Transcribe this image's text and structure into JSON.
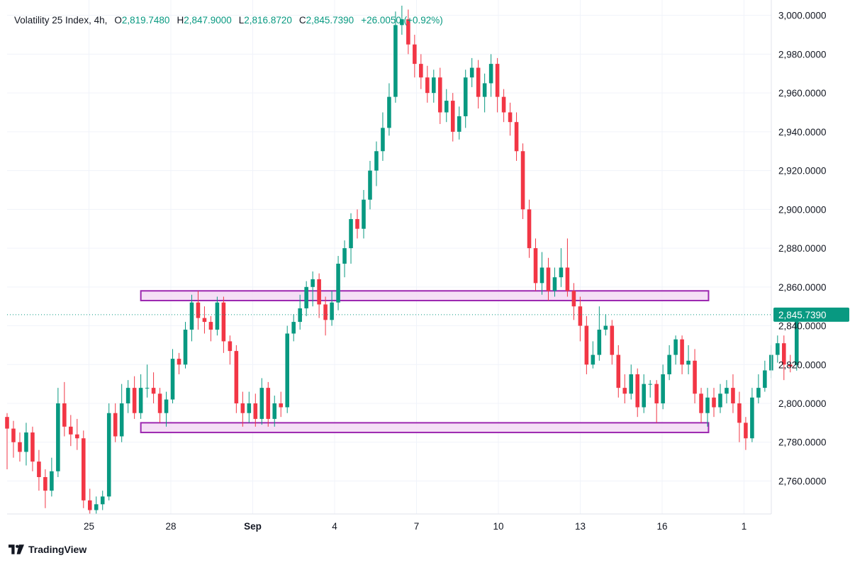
{
  "legend": {
    "symbol": "Volatility 25 Index, 4h,",
    "o_label": "O",
    "o_value": "2,819.7480",
    "h_label": "H",
    "h_value": "2,847.9000",
    "l_label": "L",
    "l_value": "2,816.8720",
    "c_label": "C",
    "c_value": "2,845.7390",
    "change": "+26.0050 (+0.92%)"
  },
  "branding": {
    "name": "TradingView"
  },
  "colors": {
    "up": "#089981",
    "down": "#f23645",
    "zone_border": "#9c27b0",
    "zone_fill": "#f3d9f5"
  },
  "chart_data": {
    "type": "candlestick",
    "y_ticks": [
      {
        "value": 3000,
        "label": "3,000.0000"
      },
      {
        "value": 2980,
        "label": "2,980.0000"
      },
      {
        "value": 2960,
        "label": "2,960.0000"
      },
      {
        "value": 2940,
        "label": "2,940.0000"
      },
      {
        "value": 2920,
        "label": "2,920.0000"
      },
      {
        "value": 2900,
        "label": "2,900.0000"
      },
      {
        "value": 2880,
        "label": "2,880.0000"
      },
      {
        "value": 2860,
        "label": "2,860.0000"
      },
      {
        "value": 2840,
        "label": "2,840.0000"
      },
      {
        "value": 2820,
        "label": "2,820.0000"
      },
      {
        "value": 2800,
        "label": "2,800.0000"
      },
      {
        "value": 2780,
        "label": "2,780.0000"
      },
      {
        "value": 2760,
        "label": "2,760.0000"
      }
    ],
    "x_ticks": [
      {
        "label": "25",
        "day": 25
      },
      {
        "label": "28",
        "day": 28
      },
      {
        "label": "Sep",
        "day": 31,
        "bold": true
      },
      {
        "label": "4",
        "day": 34
      },
      {
        "label": "7",
        "day": 37
      },
      {
        "label": "10",
        "day": 40
      },
      {
        "label": "13",
        "day": 43
      },
      {
        "label": "16",
        "day": 46
      },
      {
        "label": "1",
        "day": 49
      }
    ],
    "ylim": [
      2743,
      3005
    ],
    "xlim": [
      22.0,
      50.0
    ],
    "current_price": {
      "value": 2845.739,
      "label": "2,845.7390"
    },
    "zones": [
      {
        "top": 2858,
        "bottom": 2853,
        "from_day": 26.9,
        "to_day": 47.7
      },
      {
        "top": 2790,
        "bottom": 2785,
        "from_day": 26.9,
        "to_day": 47.7
      }
    ],
    "candles": [
      [
        2793,
        2787,
        2795,
        2766
      ],
      [
        2787,
        2780,
        2791,
        2772
      ],
      [
        2780,
        2775,
        2785,
        2770
      ],
      [
        2775,
        2785,
        2790,
        2768
      ],
      [
        2785,
        2770,
        2788,
        2765
      ],
      [
        2770,
        2762,
        2776,
        2755
      ],
      [
        2762,
        2755,
        2766,
        2746
      ],
      [
        2755,
        2765,
        2772,
        2752
      ],
      [
        2765,
        2800,
        2808,
        2762
      ],
      [
        2800,
        2788,
        2811,
        2783
      ],
      [
        2788,
        2784,
        2794,
        2778
      ],
      [
        2784,
        2782,
        2792,
        2776
      ],
      [
        2782,
        2750,
        2786,
        2746
      ],
      [
        2750,
        2745,
        2756,
        2743
      ],
      [
        2745,
        2748,
        2752,
        2743
      ],
      [
        2748,
        2752,
        2755,
        2745
      ],
      [
        2752,
        2795,
        2800,
        2750
      ],
      [
        2795,
        2783,
        2800,
        2780
      ],
      [
        2783,
        2800,
        2810,
        2780
      ],
      [
        2800,
        2808,
        2812,
        2795
      ],
      [
        2808,
        2795,
        2814,
        2792
      ],
      [
        2795,
        2808,
        2815,
        2792
      ],
      [
        2808,
        2808,
        2820,
        2803
      ],
      [
        2808,
        2805,
        2816,
        2800
      ],
      [
        2805,
        2795,
        2808,
        2790
      ],
      [
        2795,
        2802,
        2806,
        2788
      ],
      [
        2802,
        2823,
        2828,
        2800
      ],
      [
        2823,
        2820,
        2826,
        2815
      ],
      [
        2820,
        2838,
        2842,
        2818
      ],
      [
        2838,
        2852,
        2856,
        2832
      ],
      [
        2852,
        2844,
        2858,
        2838
      ],
      [
        2844,
        2842,
        2850,
        2836
      ],
      [
        2842,
        2838,
        2845,
        2832
      ],
      [
        2838,
        2852,
        2855,
        2835
      ],
      [
        2852,
        2832,
        2855,
        2826
      ],
      [
        2832,
        2827,
        2835,
        2820
      ],
      [
        2827,
        2800,
        2830,
        2795
      ],
      [
        2800,
        2795,
        2806,
        2788
      ],
      [
        2795,
        2800,
        2806,
        2790
      ],
      [
        2800,
        2792,
        2805,
        2788
      ],
      [
        2792,
        2808,
        2813,
        2789
      ],
      [
        2808,
        2792,
        2811,
        2788
      ],
      [
        2792,
        2800,
        2804,
        2788
      ],
      [
        2800,
        2798,
        2806,
        2793
      ],
      [
        2798,
        2836,
        2840,
        2795
      ],
      [
        2836,
        2842,
        2846,
        2832
      ],
      [
        2842,
        2849,
        2856,
        2838
      ],
      [
        2849,
        2860,
        2863,
        2845
      ],
      [
        2860,
        2864,
        2868,
        2850
      ],
      [
        2864,
        2851,
        2867,
        2844
      ],
      [
        2851,
        2843,
        2855,
        2835
      ],
      [
        2843,
        2852,
        2858,
        2840
      ],
      [
        2852,
        2872,
        2876,
        2848
      ],
      [
        2872,
        2880,
        2884,
        2865
      ],
      [
        2880,
        2895,
        2898,
        2872
      ],
      [
        2895,
        2890,
        2900,
        2885
      ],
      [
        2890,
        2905,
        2910,
        2885
      ],
      [
        2905,
        2920,
        2925,
        2900
      ],
      [
        2920,
        2930,
        2935,
        2912
      ],
      [
        2930,
        2942,
        2950,
        2925
      ],
      [
        2942,
        2958,
        2965,
        2938
      ],
      [
        2958,
        2995,
        3002,
        2955
      ],
      [
        2995,
        2998,
        3005,
        2990
      ],
      [
        2998,
        2985,
        3003,
        2980
      ],
      [
        2985,
        2975,
        2990,
        2968
      ],
      [
        2975,
        2968,
        2980,
        2962
      ],
      [
        2968,
        2960,
        2974,
        2955
      ],
      [
        2960,
        2968,
        2972,
        2955
      ],
      [
        2968,
        2950,
        2973,
        2944
      ],
      [
        2950,
        2956,
        2962,
        2945
      ],
      [
        2956,
        2940,
        2960,
        2935
      ],
      [
        2940,
        2948,
        2953,
        2936
      ],
      [
        2948,
        2968,
        2972,
        2942
      ],
      [
        2968,
        2973,
        2978,
        2963
      ],
      [
        2973,
        2958,
        2977,
        2952
      ],
      [
        2958,
        2965,
        2970,
        2950
      ],
      [
        2965,
        2975,
        2980,
        2958
      ],
      [
        2975,
        2958,
        2978,
        2950
      ],
      [
        2958,
        2950,
        2962,
        2945
      ],
      [
        2950,
        2945,
        2955,
        2938
      ],
      [
        2945,
        2930,
        2950,
        2925
      ],
      [
        2930,
        2900,
        2934,
        2895
      ],
      [
        2900,
        2880,
        2905,
        2875
      ],
      [
        2880,
        2862,
        2885,
        2858
      ],
      [
        2862,
        2870,
        2878,
        2856
      ],
      [
        2870,
        2858,
        2875,
        2853
      ],
      [
        2858,
        2865,
        2870,
        2855
      ],
      [
        2865,
        2870,
        2880,
        2860
      ],
      [
        2870,
        2858,
        2885,
        2855
      ],
      [
        2858,
        2850,
        2862,
        2843
      ],
      [
        2850,
        2840,
        2855,
        2832
      ],
      [
        2840,
        2820,
        2845,
        2815
      ],
      [
        2820,
        2825,
        2832,
        2818
      ],
      [
        2825,
        2838,
        2850,
        2822
      ],
      [
        2838,
        2840,
        2846,
        2835
      ],
      [
        2840,
        2825,
        2843,
        2820
      ],
      [
        2825,
        2808,
        2830,
        2803
      ],
      [
        2808,
        2805,
        2815,
        2800
      ],
      [
        2805,
        2815,
        2820,
        2802
      ],
      [
        2815,
        2798,
        2818,
        2793
      ],
      [
        2798,
        2810,
        2815,
        2795
      ],
      [
        2810,
        2810,
        2812,
        2803
      ],
      [
        2810,
        2800,
        2812,
        2790
      ],
      [
        2800,
        2815,
        2820,
        2797
      ],
      [
        2815,
        2825,
        2830,
        2812
      ],
      [
        2825,
        2833,
        2835,
        2820
      ],
      [
        2833,
        2820,
        2835,
        2815
      ],
      [
        2820,
        2822,
        2830,
        2815
      ],
      [
        2822,
        2805,
        2828,
        2800
      ],
      [
        2805,
        2795,
        2808,
        2790
      ],
      [
        2795,
        2803,
        2808,
        2788
      ],
      [
        2803,
        2798,
        2808,
        2793
      ],
      [
        2798,
        2805,
        2810,
        2795
      ],
      [
        2805,
        2808,
        2812,
        2800
      ],
      [
        2808,
        2800,
        2815,
        2795
      ],
      [
        2800,
        2790,
        2806,
        2780
      ],
      [
        2790,
        2782,
        2793,
        2776
      ],
      [
        2782,
        2803,
        2808,
        2780
      ],
      [
        2803,
        2808,
        2815,
        2800
      ],
      [
        2808,
        2817,
        2822,
        2806
      ],
      [
        2817,
        2825,
        2830,
        2813
      ],
      [
        2825,
        2831,
        2835,
        2821
      ],
      [
        2831,
        2820,
        2835,
        2812
      ],
      [
        2820,
        2819,
        2825,
        2816
      ],
      [
        2819.748,
        2845.739,
        2847.9,
        2816.872
      ]
    ],
    "candle_start_day": 22.0,
    "candle_step_day": 0.2333
  }
}
